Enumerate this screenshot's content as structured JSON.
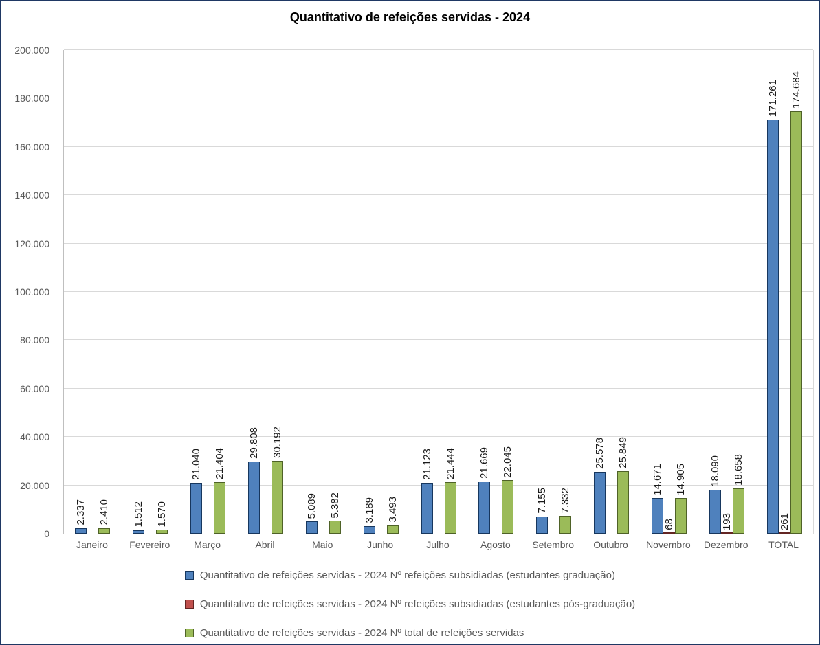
{
  "chart_data": {
    "type": "bar",
    "title": "Quantitativo de refeições servidas - 2024",
    "categories": [
      "Janeiro",
      "Fevereiro",
      "Março",
      "Abril",
      "Maio",
      "Junho",
      "Julho",
      "Agosto",
      "Setembro",
      "Outubro",
      "Novembro",
      "Dezembro",
      "TOTAL"
    ],
    "series": [
      {
        "key": "graduacao",
        "name": "Quantitativo de refeições servidas - 2024 Nº refeições subsidiadas (estudantes graduação)",
        "color": "#4F81BD",
        "border_color": "#17375E",
        "values": [
          2337,
          1512,
          21040,
          29808,
          5089,
          3189,
          21123,
          21669,
          7155,
          25578,
          14671,
          18090,
          171261
        ],
        "labels": [
          "2.337",
          "1.512",
          "21.040",
          "29.808",
          "5.089",
          "3.189",
          "21.123",
          "21.669",
          "7.155",
          "25.578",
          "14.671",
          "18.090",
          "171.261"
        ]
      },
      {
        "key": "pos-graduacao",
        "name": "Quantitativo de refeições servidas - 2024 Nº refeições subsidiadas (estudantes pós-graduação)",
        "color": "#C0504D",
        "border_color": "#632523",
        "values": [
          0,
          0,
          0,
          0,
          0,
          0,
          0,
          0,
          0,
          0,
          68,
          193,
          261
        ],
        "labels": [
          "",
          "",
          "",
          "",
          "",
          "",
          "",
          "",
          "",
          "",
          "68",
          "193",
          "261"
        ]
      },
      {
        "key": "total",
        "name": "Quantitativo de refeições servidas - 2024 Nº total de refeições servidas",
        "color": "#9BBB59",
        "border_color": "#4F6228",
        "values": [
          2410,
          1570,
          21404,
          30192,
          5382,
          3493,
          21444,
          22045,
          7332,
          25849,
          14905,
          18658,
          174684
        ],
        "labels": [
          "2.410",
          "1.570",
          "21.404",
          "30.192",
          "5.382",
          "3.493",
          "21.444",
          "22.045",
          "7.332",
          "25.849",
          "14.905",
          "18.658",
          "174.684"
        ]
      }
    ],
    "y_axis": {
      "min": 0,
      "max": 200000,
      "step": 20000,
      "tick_labels": [
        "0",
        "20.000",
        "40.000",
        "60.000",
        "80.000",
        "100.000",
        "120.000",
        "140.000",
        "160.000",
        "180.000",
        "200.000"
      ]
    },
    "legend_position": "bottom",
    "grid": true,
    "bar_label_rotation": "vertical"
  },
  "colors": {
    "frame_border": "#1F3864",
    "gridline": "#D9D9D9",
    "axis_line": "#BFBFBF",
    "tick_text": "#595959",
    "data_label_text": "#1A1A1A"
  }
}
